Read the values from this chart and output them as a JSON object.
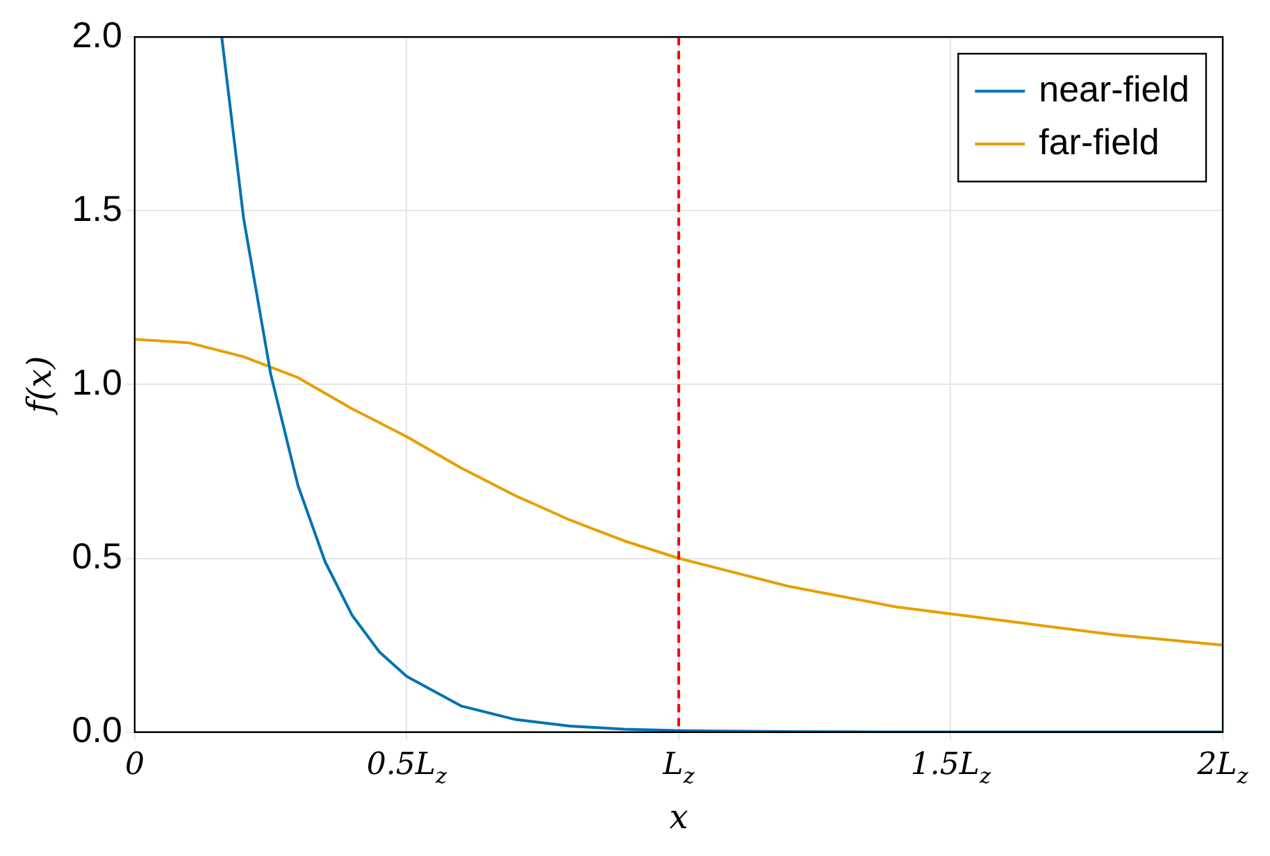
{
  "chart_data": {
    "type": "line",
    "xlabel": "x",
    "ylabel": "f(x)",
    "xlim": [
      0,
      2
    ],
    "xticks": [
      {
        "value": 0,
        "label": "0"
      },
      {
        "value": 0.5,
        "label": "0.5L$_{z}$"
      },
      {
        "value": 1,
        "label": "L$_{z}$"
      },
      {
        "value": 1.5,
        "label": "1.5L$_{z}$"
      },
      {
        "value": 2,
        "label": "2L$_{z}$"
      }
    ],
    "ylim": [
      0,
      2
    ],
    "yticks": [
      {
        "value": 0,
        "label": "0.0"
      },
      {
        "value": 0.5,
        "label": "0.5"
      },
      {
        "value": 1,
        "label": "1.0"
      },
      {
        "value": 1.5,
        "label": "1.5"
      },
      {
        "value": 2,
        "label": "2.0"
      }
    ],
    "series": [
      {
        "name": "near-field",
        "color": "#0072b2",
        "x": [
          0.16,
          0.2,
          0.25,
          0.3,
          0.35,
          0.4,
          0.45,
          0.5,
          0.6,
          0.7,
          0.8,
          0.9,
          1.0,
          1.2,
          1.5,
          2.0
        ],
        "values": [
          2.0,
          1.48,
          1.03,
          0.71,
          0.49,
          0.335,
          0.23,
          0.16,
          0.075,
          0.036,
          0.017,
          0.008,
          0.004,
          0.001,
          0,
          0
        ]
      },
      {
        "name": "far-field",
        "color": "#e69f00",
        "x": [
          0,
          0.1,
          0.2,
          0.3,
          0.4,
          0.5,
          0.6,
          0.7,
          0.8,
          0.9,
          1.0,
          1.2,
          1.4,
          1.6,
          1.8,
          2.0
        ],
        "values": [
          1.13,
          1.12,
          1.08,
          1.02,
          0.93,
          0.85,
          0.76,
          0.68,
          0.61,
          0.55,
          0.5,
          0.42,
          0.36,
          0.32,
          0.28,
          0.25
        ]
      }
    ],
    "ref_lines": [
      {
        "axis": "x",
        "value": 1,
        "color": "#ff0000",
        "line_style": "dashed"
      }
    ],
    "grid": true,
    "legend": "top right",
    "marker": "none",
    "line_style": "solid"
  }
}
